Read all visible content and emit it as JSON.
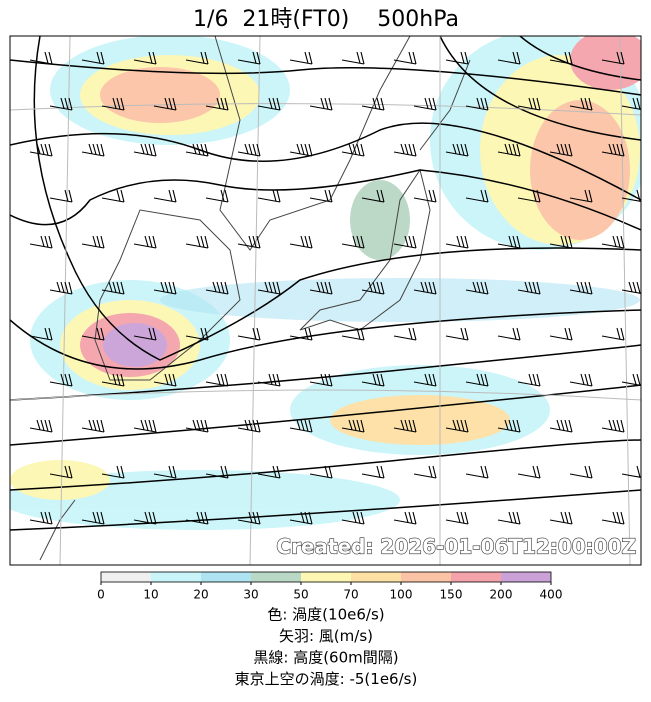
{
  "title": "1/6  21時(FT0)    500hPa",
  "created": "Created: 2026-01-06T12:00:00Z",
  "colorbar": {
    "ticks": [
      0,
      10,
      20,
      30,
      50,
      70,
      100,
      150,
      200,
      400
    ],
    "colors": [
      "#efefef",
      "#c9f5f9",
      "#aee3f2",
      "#b9d8c6",
      "#fdf7b3",
      "#fde0a4",
      "#fbc3a5",
      "#f4a3aa",
      "#cba2d8"
    ]
  },
  "legend": [
    "色: 渦度(10e6/s)",
    "矢羽: 風(m/s)",
    "黒線: 高度(60m間隔)",
    "東京上空の渦度: -5(1e6/s)"
  ]
}
